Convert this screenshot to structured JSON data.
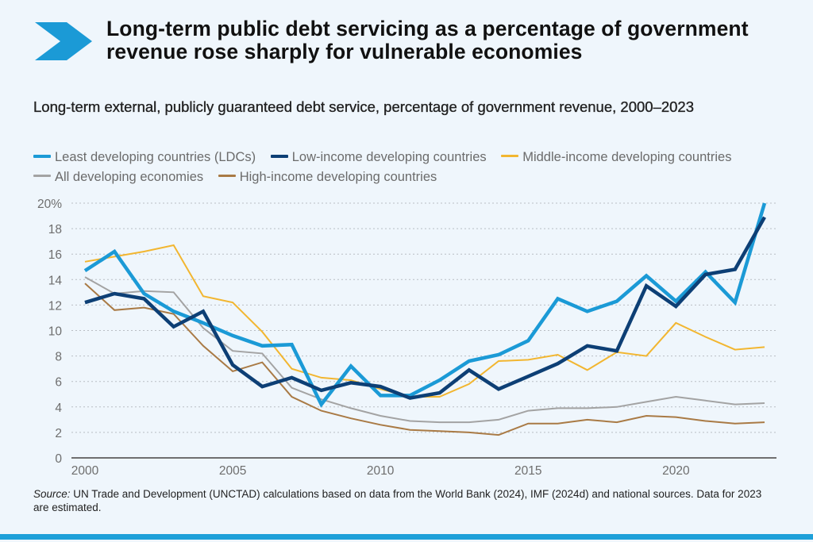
{
  "header": {
    "icon": "chevron-right-icon",
    "accent_color": "#1b9ad6",
    "title": "Long-term public debt servicing as a percentage of government revenue rose sharply for vulnerable economies",
    "subtitle": "Long-term external, publicly guaranteed debt service, percentage of government revenue, 2000–2023"
  },
  "footer": {
    "source_label": "Source:",
    "source_text": " UN Trade and Development (UNCTAD) calculations based on data from the World Bank (2024), IMF (2024d) and national sources. Data for 2023 are estimated.",
    "bar_color": "#1ea0d9"
  },
  "chart_data": {
    "type": "line",
    "title": "Long-term external, publicly guaranteed debt service, percentage of government revenue, 2000–2023",
    "xlabel": "",
    "ylabel": "",
    "x": [
      2000,
      2001,
      2002,
      2003,
      2004,
      2005,
      2006,
      2007,
      2008,
      2009,
      2010,
      2011,
      2012,
      2013,
      2014,
      2015,
      2016,
      2017,
      2018,
      2019,
      2020,
      2021,
      2022,
      2023
    ],
    "xlim": [
      2000,
      2023
    ],
    "ylim": [
      0,
      20
    ],
    "x_ticks": [
      2000,
      2005,
      2010,
      2015,
      2020
    ],
    "x_tick_labels": [
      "2000",
      "2005",
      "2010",
      "2015",
      "2020"
    ],
    "y_ticks": [
      0,
      2,
      4,
      6,
      8,
      10,
      12,
      14,
      16,
      18,
      20
    ],
    "y_tick_labels": [
      "0",
      "2",
      "4",
      "6",
      "8",
      "10",
      "12",
      "14",
      "16",
      "18",
      "20%"
    ],
    "grid": "horizontal-dotted",
    "legend_position": "top",
    "series": [
      {
        "name": "Least developing countries (LDCs)",
        "color": "#1b9ad6",
        "weight": "thick",
        "values": [
          14.7,
          16.2,
          12.9,
          11.5,
          10.6,
          9.6,
          8.8,
          8.9,
          4.2,
          7.2,
          4.9,
          4.9,
          6.1,
          7.6,
          8.1,
          9.2,
          12.5,
          11.5,
          12.3,
          14.3,
          12.3,
          14.6,
          12.2,
          20.0
        ]
      },
      {
        "name": "Low-income developing countries",
        "color": "#0d3f75",
        "weight": "thick",
        "values": [
          12.2,
          12.9,
          12.5,
          10.3,
          11.5,
          7.3,
          5.6,
          6.3,
          5.3,
          5.9,
          5.6,
          4.7,
          5.1,
          6.9,
          5.4,
          6.4,
          7.4,
          8.8,
          8.4,
          13.5,
          11.9,
          14.4,
          14.8,
          18.9
        ]
      },
      {
        "name": "Middle-income developing countries",
        "color": "#f2b630",
        "weight": "thin",
        "values": [
          15.4,
          15.8,
          16.2,
          16.7,
          12.7,
          12.2,
          9.9,
          7.0,
          6.3,
          6.1,
          5.4,
          4.8,
          4.8,
          5.8,
          7.6,
          7.7,
          8.1,
          6.9,
          8.3,
          8.0,
          10.6,
          9.5,
          8.5,
          8.7
        ]
      },
      {
        "name": "All developing economies",
        "color": "#a3a3a3",
        "weight": "thin",
        "values": [
          14.2,
          12.9,
          13.1,
          13.0,
          10.2,
          8.4,
          8.2,
          5.5,
          4.6,
          3.9,
          3.3,
          2.9,
          2.8,
          2.8,
          3.0,
          3.7,
          3.9,
          3.9,
          4.0,
          4.4,
          4.8,
          4.5,
          4.2,
          4.3
        ]
      },
      {
        "name": "High-income developing countries",
        "color": "#a97a45",
        "weight": "thin",
        "values": [
          13.7,
          11.6,
          11.8,
          11.3,
          8.8,
          6.8,
          7.5,
          4.8,
          3.7,
          3.1,
          2.6,
          2.2,
          2.1,
          2.0,
          1.8,
          2.7,
          2.7,
          3.0,
          2.8,
          3.3,
          3.2,
          2.9,
          2.7,
          2.8
        ]
      }
    ],
    "draw_order": [
      3,
      4,
      2,
      0,
      1
    ]
  }
}
